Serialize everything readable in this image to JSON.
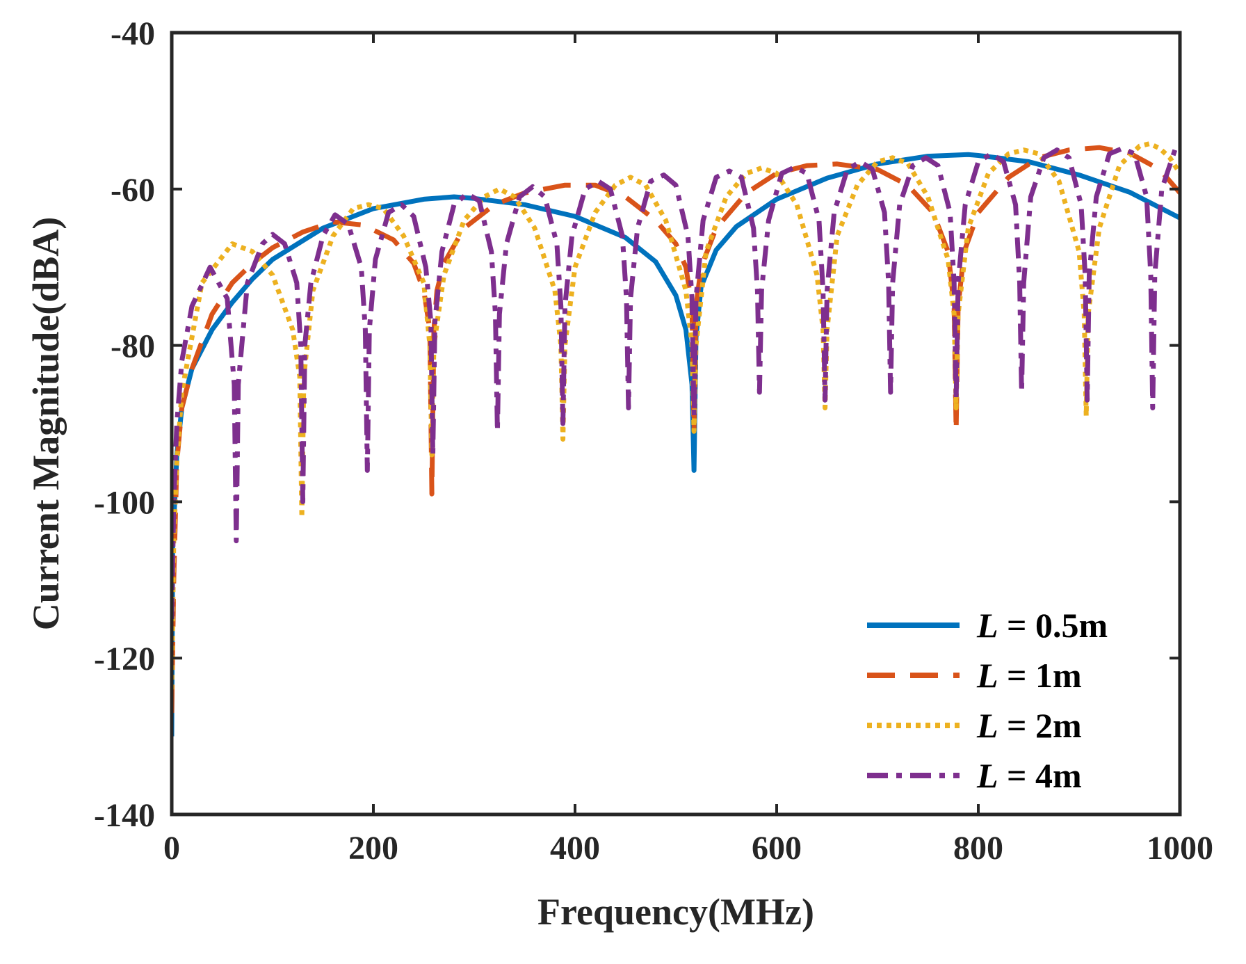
{
  "chart_data": {
    "type": "line",
    "title": "",
    "xlabel": "Frequency(MHz)",
    "ylabel": "Current Magnitude(dBA)",
    "xlim": [
      0,
      1000
    ],
    "ylim": [
      -140,
      -40
    ],
    "xticks": [
      0,
      200,
      400,
      600,
      800,
      1000
    ],
    "yticks": [
      -140,
      -120,
      -100,
      -80,
      -60,
      -40
    ],
    "xtick_labels": [
      "0",
      "200",
      "400",
      "600",
      "800",
      "1000"
    ],
    "ytick_labels": [
      "-140",
      "-120",
      "-100",
      "-80",
      "-60",
      "-40"
    ],
    "grid": false,
    "legend_position": "bottom-right",
    "series": [
      {
        "name": "L = 0.5m",
        "legend_symbol": "L",
        "legend_value": "0.5m",
        "color": "#0072BD",
        "style": "solid",
        "x": [
          0,
          1,
          3,
          5,
          10,
          20,
          40,
          60,
          80,
          100,
          150,
          200,
          250,
          280,
          300,
          350,
          400,
          450,
          480,
          500,
          510,
          516,
          518,
          520,
          525,
          540,
          560,
          600,
          650,
          700,
          750,
          790,
          800,
          850,
          900,
          950,
          1000
        ],
        "y": [
          -130,
          -105,
          -100,
          -94,
          -88,
          -83,
          -78,
          -74.5,
          -71.5,
          -69,
          -65,
          -62.5,
          -61.3,
          -61,
          -61.2,
          -62,
          -63.5,
          -66.2,
          -69.3,
          -73.6,
          -78,
          -85,
          -96,
          -79,
          -72.5,
          -67.8,
          -64.8,
          -61.3,
          -58.6,
          -56.8,
          -55.8,
          -55.6,
          -55.7,
          -56.5,
          -58.2,
          -60.4,
          -63.7
        ]
      },
      {
        "name": "L = 1m",
        "legend_symbol": "L",
        "legend_value": "1m",
        "color": "#D95319",
        "style": "dashed",
        "x": [
          0,
          2,
          5,
          10,
          20,
          40,
          60,
          80,
          100,
          130,
          160,
          190,
          220,
          240,
          250,
          256,
          258,
          260,
          263,
          270,
          290,
          320,
          350,
          390,
          420,
          450,
          480,
          500,
          510,
          516,
          518,
          520,
          525,
          540,
          570,
          600,
          630,
          660,
          700,
          730,
          755,
          770,
          776,
          778,
          780,
          786,
          800,
          830,
          860,
          890,
          920,
          950,
          980,
          1000
        ],
        "y": [
          -127,
          -110,
          -95,
          -88,
          -83,
          -76,
          -72,
          -69.5,
          -67.5,
          -65.5,
          -64.2,
          -64.6,
          -66.5,
          -69.5,
          -73,
          -78,
          -99,
          -78,
          -73,
          -69.5,
          -65,
          -62,
          -60.5,
          -59.5,
          -59.5,
          -61,
          -64,
          -67,
          -70,
          -75,
          -91,
          -75,
          -70,
          -65,
          -60.5,
          -58,
          -57,
          -56.8,
          -57.5,
          -59.5,
          -63,
          -68,
          -75,
          -91,
          -75,
          -68,
          -63,
          -58.5,
          -56,
          -55,
          -54.7,
          -55.4,
          -57.5,
          -60.5
        ]
      },
      {
        "name": "L = 2m",
        "legend_symbol": "L",
        "legend_value": "2m",
        "color": "#EDB120",
        "style": "dotted",
        "x": [
          0,
          2,
          5,
          10,
          30,
          60,
          80,
          100,
          120,
          127,
          129,
          131,
          140,
          160,
          180,
          195,
          210,
          230,
          250,
          256,
          258,
          260,
          270,
          290,
          310,
          325,
          340,
          360,
          380,
          386,
          388,
          390,
          400,
          420,
          440,
          455,
          470,
          490,
          510,
          516,
          518,
          520,
          530,
          550,
          570,
          585,
          600,
          620,
          640,
          646,
          648,
          650,
          660,
          680,
          700,
          715,
          730,
          750,
          770,
          776,
          778,
          780,
          790,
          810,
          830,
          845,
          860,
          880,
          900,
          905,
          907,
          909,
          920,
          940,
          960,
          970,
          980,
          990,
          1000
        ],
        "y": [
          -124,
          -105,
          -95,
          -86,
          -72,
          -67,
          -68,
          -71,
          -78,
          -84,
          -102,
          -84,
          -73,
          -66,
          -62.5,
          -62,
          -62.5,
          -66,
          -72,
          -80,
          -94,
          -80,
          -71,
          -64,
          -61,
          -60,
          -61,
          -65,
          -73,
          -80,
          -92,
          -80,
          -70,
          -63,
          -59.5,
          -58.5,
          -59.5,
          -64,
          -73,
          -80,
          -91,
          -80,
          -68,
          -61,
          -58,
          -57.3,
          -58,
          -62,
          -71,
          -78,
          -88,
          -78,
          -66,
          -59.5,
          -56.5,
          -56,
          -56.7,
          -61,
          -69,
          -76,
          -88,
          -76,
          -65,
          -58,
          -55.5,
          -55,
          -55.5,
          -59,
          -68,
          -76,
          -89,
          -76,
          -65,
          -57,
          -54.5,
          -54.2,
          -54.8,
          -56,
          -58
        ]
      },
      {
        "name": "L = 4m",
        "legend_symbol": "L",
        "legend_value": "4m",
        "color": "#7E2F8E",
        "style": "dashdot",
        "x": [
          0,
          2,
          5,
          10,
          20,
          38,
          55,
          62,
          64,
          66,
          75,
          90,
          100,
          112,
          124,
          128,
          130,
          132,
          138,
          150,
          162,
          175,
          188,
          192,
          194,
          196,
          202,
          215,
          228,
          240,
          252,
          257,
          259,
          261,
          268,
          280,
          293,
          305,
          317,
          321,
          323,
          325,
          332,
          345,
          358,
          370,
          382,
          386,
          388,
          390,
          397,
          410,
          423,
          435,
          447,
          451,
          453,
          455,
          462,
          475,
          488,
          500,
          512,
          516,
          518,
          520,
          527,
          540,
          553,
          565,
          577,
          581,
          583,
          585,
          592,
          605,
          618,
          630,
          642,
          646,
          648,
          650,
          657,
          670,
          683,
          695,
          707,
          711,
          713,
          715,
          722,
          735,
          748,
          760,
          772,
          776,
          778,
          780,
          787,
          800,
          813,
          825,
          837,
          841,
          843,
          845,
          852,
          865,
          878,
          890,
          902,
          906,
          908,
          910,
          917,
          930,
          943,
          955,
          967,
          971,
          973,
          975,
          982,
          995,
          1000
        ],
        "y": [
          -115,
          -100,
          -90,
          -82,
          -75,
          -70,
          -74,
          -85,
          -105,
          -85,
          -72,
          -67,
          -65.8,
          -67,
          -72,
          -80,
          -100,
          -80,
          -72,
          -66,
          -63.3,
          -64.5,
          -70,
          -78,
          -96,
          -78,
          -69,
          -63,
          -62,
          -63.5,
          -70,
          -77,
          -94,
          -77,
          -68,
          -62,
          -60.6,
          -61.5,
          -68,
          -76,
          -91,
          -76,
          -67,
          -61,
          -59.7,
          -61,
          -67,
          -75,
          -90,
          -75,
          -66,
          -60,
          -59,
          -60,
          -66,
          -74,
          -88,
          -74,
          -65,
          -59,
          -58.2,
          -59.5,
          -66,
          -74,
          -89,
          -74,
          -64,
          -58.5,
          -57.7,
          -58.5,
          -65,
          -73,
          -86,
          -73,
          -64,
          -58,
          -57.2,
          -58,
          -64,
          -73,
          -87,
          -73,
          -63,
          -57.5,
          -56.5,
          -57.5,
          -63,
          -72,
          -86,
          -72,
          -62,
          -57,
          -56,
          -57,
          -63,
          -72,
          -87,
          -72,
          -62,
          -56.5,
          -55.5,
          -56.5,
          -62,
          -72,
          -86,
          -72,
          -61,
          -56,
          -55,
          -56,
          -62,
          -71,
          -87,
          -71,
          -61,
          -55.5,
          -54.8,
          -55.5,
          -61,
          -71,
          -88,
          -71,
          -60,
          -55,
          -54.5
        ]
      }
    ]
  }
}
